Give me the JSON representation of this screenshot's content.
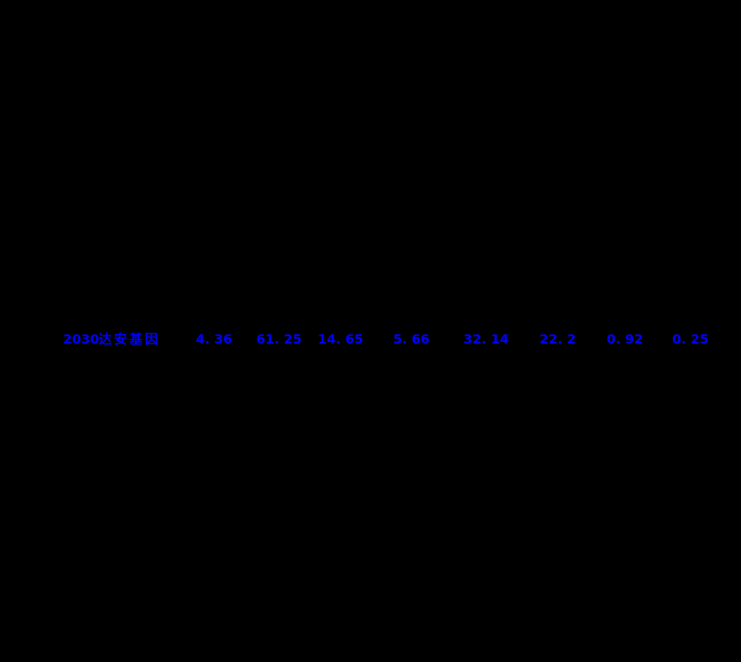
{
  "colors": {
    "background": "#000000",
    "row_text_blue": "#0000ff"
  },
  "stock_row": {
    "code": "2030",
    "name": "达安基因",
    "values": [
      "4. 36",
      "61. 25",
      "14. 65",
      "5. 66",
      "32. 14",
      "22. 2",
      "0. 92",
      "0. 25"
    ]
  }
}
